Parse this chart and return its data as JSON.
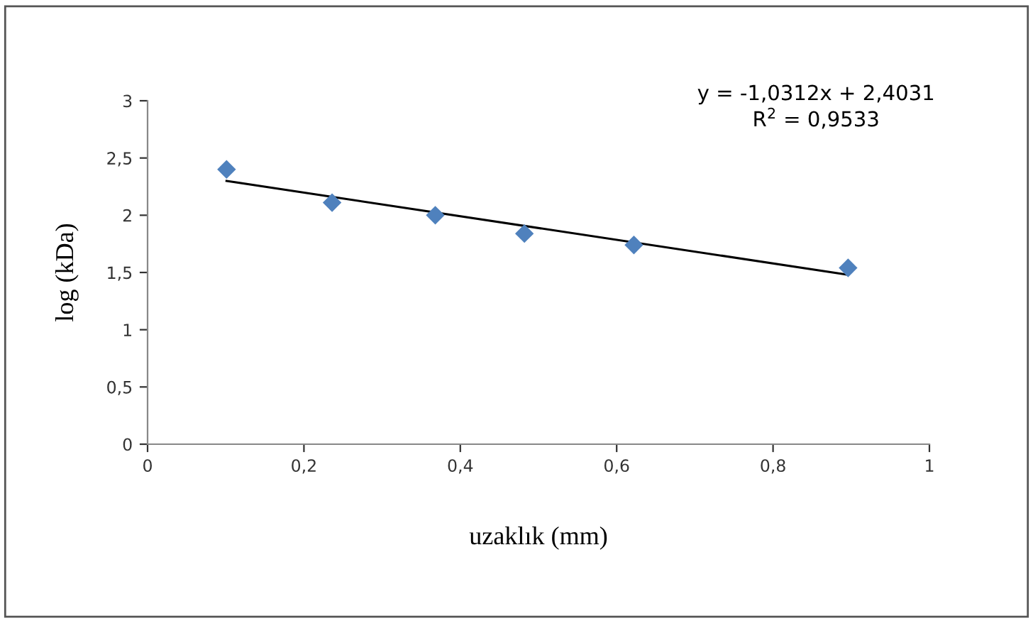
{
  "chart_data": {
    "type": "scatter",
    "xlabel": "uzaklık (mm)",
    "ylabel": "log (kDa)",
    "series": [
      {
        "color": "#4f81bd",
        "marker": "diamond",
        "x": [
          0.101,
          0.236,
          0.368,
          0.482,
          0.622,
          0.896
        ],
        "values": [
          2.4,
          2.11,
          2.0,
          1.84,
          1.74,
          1.54
        ]
      },
      {
        "type": "line",
        "color": "#000000",
        "marker": "none",
        "x": [
          0.101,
          0.896
        ],
        "values": [
          2.3,
          1.48
        ]
      }
    ],
    "annotations": [
      "y = -1,0312x + 2,4031\nR$^{2}$ = 0,9533"
    ],
    "xlim": [
      0,
      1
    ],
    "ylim": [
      0,
      3
    ],
    "xticks": [
      0,
      {
        "value": 0.2,
        "label": "0,2"
      },
      {
        "value": 0.4,
        "label": "0,4"
      },
      {
        "value": 0.6,
        "label": "0,6"
      },
      {
        "value": 0.8,
        "label": "0,8"
      },
      1
    ],
    "yticks": [
      0,
      {
        "value": 0.5,
        "label": "0,5"
      },
      1,
      {
        "value": 1.5,
        "label": "1,5"
      },
      2,
      {
        "value": 2.5,
        "label": "2,5"
      },
      3
    ],
    "grid": false,
    "legend": false
  }
}
